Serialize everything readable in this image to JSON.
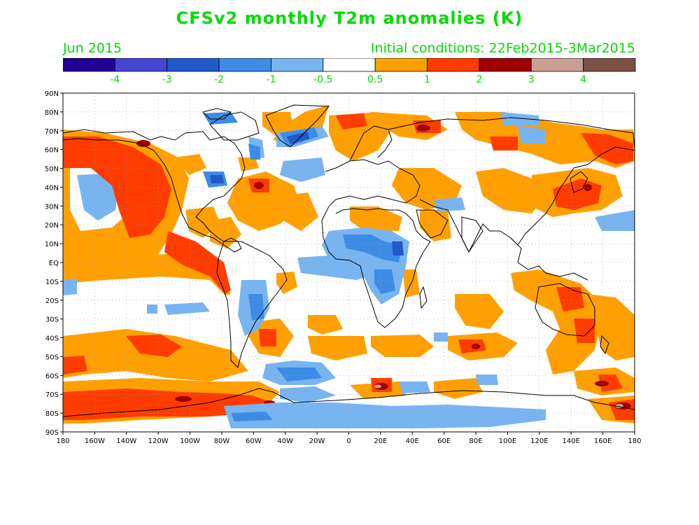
{
  "title": "CFSv2 monthly T2m anomalies (K)",
  "valid_month": "Jun 2015",
  "init_conditions": "Initial conditions: 22Feb2015-3Mar2015",
  "colorbar": {
    "colors": [
      "#200096",
      "#4646d2",
      "#1e5ac8",
      "#3c8ce6",
      "#78b4f0",
      "#ffffff",
      "#ffa000",
      "#ff3c00",
      "#a00000",
      "#c8a096",
      "#7d5046"
    ],
    "labels": [
      "-4",
      "-3",
      "-2",
      "-1",
      "-0.5",
      "0.5",
      "1",
      "2",
      "3",
      "4"
    ]
  },
  "map": {
    "lat_labels": [
      "90N",
      "80N",
      "70N",
      "60N",
      "50N",
      "40N",
      "30N",
      "20N",
      "10N",
      "EQ",
      "10S",
      "20S",
      "30S",
      "40S",
      "50S",
      "60S",
      "70S",
      "80S",
      "90S"
    ],
    "lon_labels": [
      "180",
      "160W",
      "140W",
      "120W",
      "100W",
      "80W",
      "60W",
      "40W",
      "20W",
      "0",
      "20E",
      "40E",
      "60E",
      "80E",
      "100E",
      "120E",
      "140E",
      "160E",
      "180"
    ]
  },
  "palette": {
    "warm1": "#ffa000",
    "warm2": "#ff3c00",
    "warm3": "#a00000",
    "warm4": "#c8a096",
    "cold1": "#78b4f0",
    "cold2": "#3c8ce6",
    "cold3": "#1e5ac8",
    "cold4": "#4646d2"
  }
}
